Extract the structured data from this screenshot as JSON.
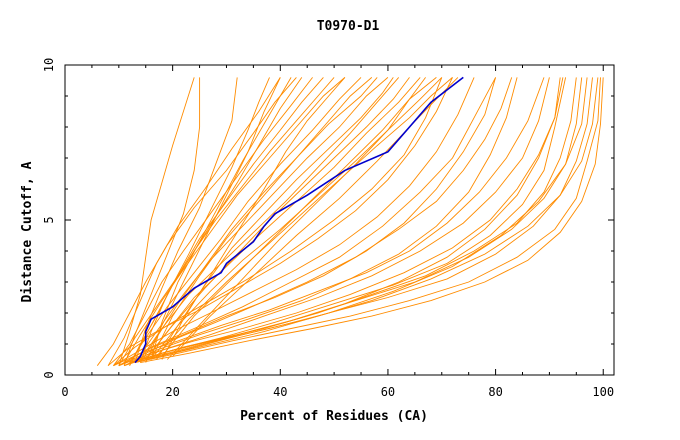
{
  "chart_data": {
    "type": "line",
    "title": "T0970-D1",
    "xlabel": "Percent of Residues (CA)",
    "ylabel": "Distance Cutoff, A",
    "xlim": [
      0,
      102
    ],
    "ylim": [
      0,
      10
    ],
    "x_ticks": [
      "0",
      "20",
      "40",
      "60",
      "80",
      "100"
    ],
    "y_ticks": [
      "0",
      "5",
      "10"
    ],
    "grid": false,
    "legend": "none",
    "colors": {
      "background_series": "#ff8c00",
      "highlight_series": "#0000cd"
    },
    "series": [
      {
        "highlight": true,
        "x": [
          13,
          14,
          14.5,
          15,
          15,
          16,
          20,
          24,
          29,
          30,
          35,
          37,
          39,
          45,
          52,
          60,
          64,
          68,
          74
        ],
        "y": [
          0.4,
          0.6,
          0.8,
          1.0,
          1.4,
          1.8,
          2.2,
          2.8,
          3.3,
          3.6,
          4.3,
          4.8,
          5.2,
          5.8,
          6.6,
          7.2,
          8.0,
          8.8,
          9.6
        ]
      },
      {
        "highlight": false,
        "x": [
          6,
          9,
          12,
          15,
          19,
          24,
          30,
          35,
          39,
          43
        ],
        "y": [
          0.3,
          1.0,
          2.0,
          3.0,
          4.2,
          5.4,
          6.6,
          7.8,
          8.8,
          9.6
        ]
      },
      {
        "highlight": false,
        "x": [
          8,
          11,
          14,
          17,
          21,
          26,
          31,
          36,
          40
        ],
        "y": [
          0.3,
          1.2,
          2.4,
          3.6,
          4.8,
          6.0,
          7.3,
          8.5,
          9.6
        ]
      },
      {
        "highlight": false,
        "x": [
          9,
          12,
          15,
          18,
          22,
          27,
          32,
          37,
          42,
          46
        ],
        "y": [
          0.3,
          1.0,
          2.0,
          3.0,
          4.0,
          5.2,
          6.4,
          7.6,
          8.7,
          9.6
        ]
      },
      {
        "highlight": false,
        "x": [
          10,
          13,
          17,
          21,
          25,
          30,
          35,
          40,
          44,
          48
        ],
        "y": [
          0.3,
          1.2,
          2.2,
          3.2,
          4.4,
          5.6,
          6.8,
          7.9,
          8.8,
          9.6
        ]
      },
      {
        "highlight": false,
        "x": [
          11,
          14,
          18,
          22,
          27,
          32,
          38,
          43,
          48,
          52
        ],
        "y": [
          0.4,
          1.3,
          2.4,
          3.4,
          4.6,
          5.8,
          7.0,
          8.0,
          9.0,
          9.6
        ]
      },
      {
        "highlight": false,
        "x": [
          12,
          15,
          19,
          24,
          29,
          34,
          40,
          46,
          51,
          55
        ],
        "y": [
          0.4,
          1.2,
          2.2,
          3.3,
          4.4,
          5.6,
          6.8,
          7.9,
          8.9,
          9.6
        ]
      },
      {
        "highlight": false,
        "x": [
          13,
          17,
          22,
          27,
          33,
          39,
          45,
          51,
          56,
          60
        ],
        "y": [
          0.4,
          1.4,
          2.6,
          3.7,
          4.8,
          5.9,
          7.0,
          8.0,
          9.0,
          9.6
        ]
      },
      {
        "highlight": false,
        "x": [
          14,
          18,
          23,
          29,
          35,
          41,
          47,
          53,
          58,
          62
        ],
        "y": [
          0.5,
          1.5,
          2.6,
          3.6,
          4.6,
          5.6,
          6.7,
          7.8,
          8.8,
          9.6
        ]
      },
      {
        "highlight": false,
        "x": [
          15,
          20,
          26,
          32,
          38,
          44,
          50,
          56,
          61,
          64
        ],
        "y": [
          0.5,
          1.6,
          2.8,
          3.9,
          5.0,
          6.0,
          7.0,
          8.0,
          8.9,
          9.6
        ]
      },
      {
        "highlight": false,
        "x": [
          16,
          21,
          27,
          33,
          40,
          47,
          54,
          60,
          64,
          67
        ],
        "y": [
          0.5,
          1.6,
          2.7,
          3.7,
          4.7,
          5.8,
          6.9,
          7.9,
          8.9,
          9.6
        ]
      },
      {
        "highlight": false,
        "x": [
          17,
          23,
          30,
          37,
          44,
          51,
          58,
          64,
          68,
          72
        ],
        "y": [
          0.6,
          1.8,
          3.0,
          4.1,
          5.2,
          6.3,
          7.4,
          8.3,
          9.0,
          9.6
        ]
      },
      {
        "highlight": false,
        "x": [
          12,
          16,
          20,
          24,
          28,
          33,
          38,
          43,
          47,
          50
        ],
        "y": [
          0.3,
          1.6,
          2.9,
          4.0,
          5.0,
          6.1,
          7.2,
          8.2,
          9.0,
          9.6
        ]
      },
      {
        "highlight": false,
        "x": [
          14,
          17,
          21,
          26,
          31,
          37,
          43,
          49,
          55,
          58
        ],
        "y": [
          0.4,
          1.2,
          2.3,
          3.5,
          4.7,
          5.9,
          7.0,
          8.1,
          9.0,
          9.6
        ]
      },
      {
        "highlight": false,
        "x": [
          11,
          13,
          16,
          19,
          22,
          24,
          25,
          25
        ],
        "y": [
          0.3,
          1.3,
          2.6,
          3.9,
          5.2,
          6.6,
          8.0,
          9.6
        ]
      },
      {
        "highlight": false,
        "x": [
          13,
          15,
          18,
          21,
          25,
          28,
          31,
          32
        ],
        "y": [
          0.4,
          1.5,
          2.8,
          4.0,
          5.4,
          6.8,
          8.2,
          9.6
        ]
      },
      {
        "highlight": false,
        "x": [
          15,
          18,
          22,
          26,
          30,
          34,
          37,
          40
        ],
        "y": [
          0.4,
          1.6,
          3.0,
          4.4,
          5.8,
          7.2,
          8.5,
          9.6
        ]
      },
      {
        "highlight": false,
        "x": [
          16,
          20,
          25,
          30,
          36,
          42,
          48,
          53,
          57
        ],
        "y": [
          0.5,
          1.9,
          3.2,
          4.4,
          5.6,
          6.8,
          8.0,
          9.0,
          9.6
        ]
      },
      {
        "highlight": false,
        "x": [
          18,
          24,
          31,
          38,
          45,
          52,
          59,
          64,
          69
        ],
        "y": [
          0.6,
          1.9,
          3.1,
          4.3,
          5.5,
          6.7,
          7.9,
          8.9,
          9.6
        ]
      },
      {
        "highlight": false,
        "x": [
          19,
          26,
          33,
          40,
          47,
          54,
          60,
          66,
          70
        ],
        "y": [
          0.5,
          1.8,
          3.1,
          4.4,
          5.6,
          6.8,
          7.9,
          8.9,
          9.6
        ]
      },
      {
        "highlight": false,
        "x": [
          20,
          27,
          35,
          43,
          51,
          58,
          64,
          69,
          73
        ],
        "y": [
          0.6,
          1.9,
          3.2,
          4.5,
          5.7,
          6.9,
          8.0,
          8.9,
          9.6
        ]
      },
      {
        "highlight": false,
        "x": [
          14,
          16,
          19,
          23,
          27,
          31,
          34,
          36,
          38
        ],
        "y": [
          0.4,
          1.4,
          2.6,
          3.9,
          5.3,
          6.7,
          7.9,
          8.8,
          9.6
        ]
      },
      {
        "highlight": false,
        "x": [
          12,
          14,
          17,
          20,
          24,
          28,
          32,
          36,
          40,
          44
        ],
        "y": [
          0.3,
          1.0,
          1.9,
          2.9,
          4.0,
          5.1,
          6.2,
          7.4,
          8.6,
          9.6
        ]
      },
      {
        "highlight": false,
        "x": [
          15,
          19,
          24,
          30,
          36,
          43,
          50,
          56,
          62,
          66
        ],
        "y": [
          0.5,
          1.4,
          2.5,
          3.5,
          4.5,
          5.6,
          6.7,
          7.8,
          8.8,
          9.6
        ]
      },
      {
        "highlight": false,
        "x": [
          10,
          12,
          14,
          15,
          16,
          18,
          20,
          22,
          24
        ],
        "y": [
          0.3,
          1.4,
          2.6,
          3.8,
          5.0,
          6.2,
          7.4,
          8.5,
          9.6
        ]
      },
      {
        "highlight": false,
        "x": [
          17,
          21,
          26,
          31,
          37,
          43,
          49,
          55,
          59,
          61
        ],
        "y": [
          0.5,
          1.6,
          2.9,
          4.1,
          5.2,
          6.3,
          7.3,
          8.3,
          9.1,
          9.6
        ]
      },
      {
        "highlight": false,
        "x": [
          18,
          22,
          27,
          32,
          37,
          41,
          45,
          49,
          52
        ],
        "y": [
          0.5,
          1.8,
          3.2,
          4.6,
          6.0,
          7.2,
          8.2,
          9.0,
          9.6
        ]
      },
      {
        "highlight": false,
        "x": [
          16,
          18,
          21,
          25,
          29,
          33,
          37,
          40,
          42
        ],
        "y": [
          0.5,
          1.7,
          3.0,
          4.3,
          5.6,
          6.9,
          8.1,
          9.0,
          9.6
        ]
      },
      {
        "highlight": false,
        "x": [
          9,
          14,
          21,
          29,
          38,
          47,
          56,
          64,
          71,
          77,
          82,
          86,
          89
        ],
        "y": [
          0.3,
          0.7,
          1.1,
          1.6,
          2.1,
          2.7,
          3.3,
          4.0,
          4.9,
          5.9,
          7.0,
          8.2,
          9.6
        ]
      },
      {
        "highlight": false,
        "x": [
          10,
          16,
          24,
          33,
          43,
          53,
          63,
          72,
          79,
          84,
          88,
          91,
          92
        ],
        "y": [
          0.3,
          0.7,
          1.1,
          1.5,
          2.0,
          2.6,
          3.3,
          4.1,
          5.0,
          6.0,
          7.1,
          8.3,
          9.6
        ]
      },
      {
        "highlight": false,
        "x": [
          11,
          18,
          27,
          37,
          47,
          57,
          67,
          76,
          84,
          89,
          92,
          94,
          95
        ],
        "y": [
          0.3,
          0.7,
          1.1,
          1.5,
          2.0,
          2.6,
          3.2,
          4.0,
          4.9,
          5.9,
          7.0,
          8.2,
          9.6
        ]
      },
      {
        "highlight": false,
        "x": [
          12,
          19,
          28,
          38,
          49,
          60,
          71,
          80,
          87,
          92,
          95,
          97,
          98
        ],
        "y": [
          0.4,
          0.7,
          1.1,
          1.5,
          2.0,
          2.5,
          3.1,
          3.9,
          4.8,
          5.8,
          6.9,
          8.1,
          9.6
        ]
      },
      {
        "highlight": false,
        "x": [
          13,
          21,
          31,
          42,
          53,
          64,
          75,
          84,
          91,
          95,
          97,
          99,
          99.5
        ],
        "y": [
          0.4,
          0.7,
          1.1,
          1.5,
          1.9,
          2.4,
          3.0,
          3.8,
          4.7,
          5.7,
          6.9,
          8.2,
          9.6
        ]
      },
      {
        "highlight": false,
        "x": [
          14,
          23,
          34,
          46,
          57,
          68,
          78,
          86,
          92,
          96,
          98.5,
          99.5,
          100
        ],
        "y": [
          0.4,
          0.7,
          1.1,
          1.5,
          1.9,
          2.4,
          3.0,
          3.7,
          4.6,
          5.6,
          6.8,
          8.1,
          9.6
        ]
      },
      {
        "highlight": false,
        "x": [
          12,
          20,
          30,
          41,
          52,
          62,
          71,
          78,
          84,
          88,
          91,
          92.5
        ],
        "y": [
          0.4,
          0.8,
          1.2,
          1.7,
          2.3,
          3.0,
          3.8,
          4.7,
          5.8,
          7.0,
          8.3,
          9.6
        ]
      },
      {
        "highlight": false,
        "x": [
          11,
          17,
          25,
          34,
          44,
          53,
          62,
          69,
          75,
          79,
          82,
          84
        ],
        "y": [
          0.3,
          0.8,
          1.3,
          1.8,
          2.4,
          3.1,
          3.9,
          4.8,
          5.9,
          7.1,
          8.3,
          9.6
        ]
      },
      {
        "highlight": false,
        "x": [
          10,
          15,
          22,
          30,
          39,
          48,
          56,
          63,
          69,
          74,
          78,
          80
        ],
        "y": [
          0.3,
          0.8,
          1.3,
          1.9,
          2.5,
          3.2,
          4.0,
          4.9,
          6.0,
          7.2,
          8.4,
          9.6
        ]
      },
      {
        "highlight": false,
        "x": [
          9,
          14,
          20,
          27,
          35,
          43,
          51,
          58,
          64,
          69,
          73,
          76
        ],
        "y": [
          0.3,
          0.8,
          1.4,
          2.0,
          2.7,
          3.4,
          4.2,
          5.1,
          6.1,
          7.2,
          8.4,
          9.6
        ]
      },
      {
        "highlight": false,
        "x": [
          8,
          12,
          18,
          25,
          32,
          40,
          47,
          54,
          60,
          65,
          69,
          72
        ],
        "y": [
          0.3,
          0.9,
          1.5,
          2.1,
          2.8,
          3.6,
          4.4,
          5.3,
          6.3,
          7.4,
          8.5,
          9.6
        ]
      },
      {
        "highlight": false,
        "x": [
          10,
          16,
          24,
          33,
          42,
          51,
          59,
          66,
          72,
          76,
          80
        ],
        "y": [
          0.3,
          0.9,
          1.5,
          2.2,
          3.0,
          3.8,
          4.8,
          5.9,
          7.0,
          8.3,
          9.6
        ]
      },
      {
        "highlight": false,
        "x": [
          13,
          22,
          33,
          45,
          57,
          68,
          78,
          86,
          92,
          96,
          98,
          99
        ],
        "y": [
          0.4,
          0.8,
          1.3,
          1.8,
          2.4,
          3.1,
          3.9,
          4.8,
          5.8,
          6.9,
          8.1,
          9.6
        ]
      },
      {
        "highlight": false,
        "x": [
          15,
          25,
          37,
          49,
          61,
          72,
          81,
          88,
          93,
          96,
          97
        ],
        "y": [
          0.5,
          0.9,
          1.4,
          2.0,
          2.7,
          3.5,
          4.5,
          5.6,
          6.8,
          8.1,
          9.6
        ]
      },
      {
        "highlight": false,
        "x": [
          11,
          18,
          27,
          37,
          47,
          57,
          66,
          74,
          80,
          85,
          88,
          90
        ],
        "y": [
          0.3,
          0.8,
          1.3,
          1.9,
          2.5,
          3.2,
          4.0,
          4.9,
          5.9,
          7.0,
          8.2,
          9.6
        ]
      },
      {
        "highlight": false,
        "x": [
          12,
          20,
          29,
          39,
          50,
          61,
          71,
          79,
          85,
          89,
          91,
          93
        ],
        "y": [
          0.4,
          0.8,
          1.2,
          1.7,
          2.3,
          2.9,
          3.6,
          4.5,
          5.5,
          6.6,
          8.0,
          9.6
        ]
      },
      {
        "highlight": false,
        "x": [
          9,
          13,
          19,
          26,
          34,
          42,
          50,
          57,
          63,
          67,
          70
        ],
        "y": [
          0.3,
          0.9,
          1.6,
          2.3,
          3.1,
          4.0,
          5.0,
          6.0,
          7.1,
          8.3,
          9.6
        ]
      },
      {
        "highlight": false,
        "x": [
          14,
          22,
          32,
          43,
          54,
          65,
          75,
          83,
          89,
          93,
          95,
          96
        ],
        "y": [
          0.5,
          0.9,
          1.3,
          1.8,
          2.4,
          3.0,
          3.8,
          4.7,
          5.7,
          6.8,
          8.1,
          9.6
        ]
      },
      {
        "highlight": false,
        "x": [
          10,
          15,
          21,
          28,
          36,
          45,
          54,
          62,
          69,
          74,
          78,
          81,
          83
        ],
        "y": [
          0.3,
          0.7,
          1.2,
          1.7,
          2.3,
          3.0,
          3.8,
          4.7,
          5.6,
          6.6,
          7.6,
          8.6,
          9.6
        ]
      }
    ]
  }
}
